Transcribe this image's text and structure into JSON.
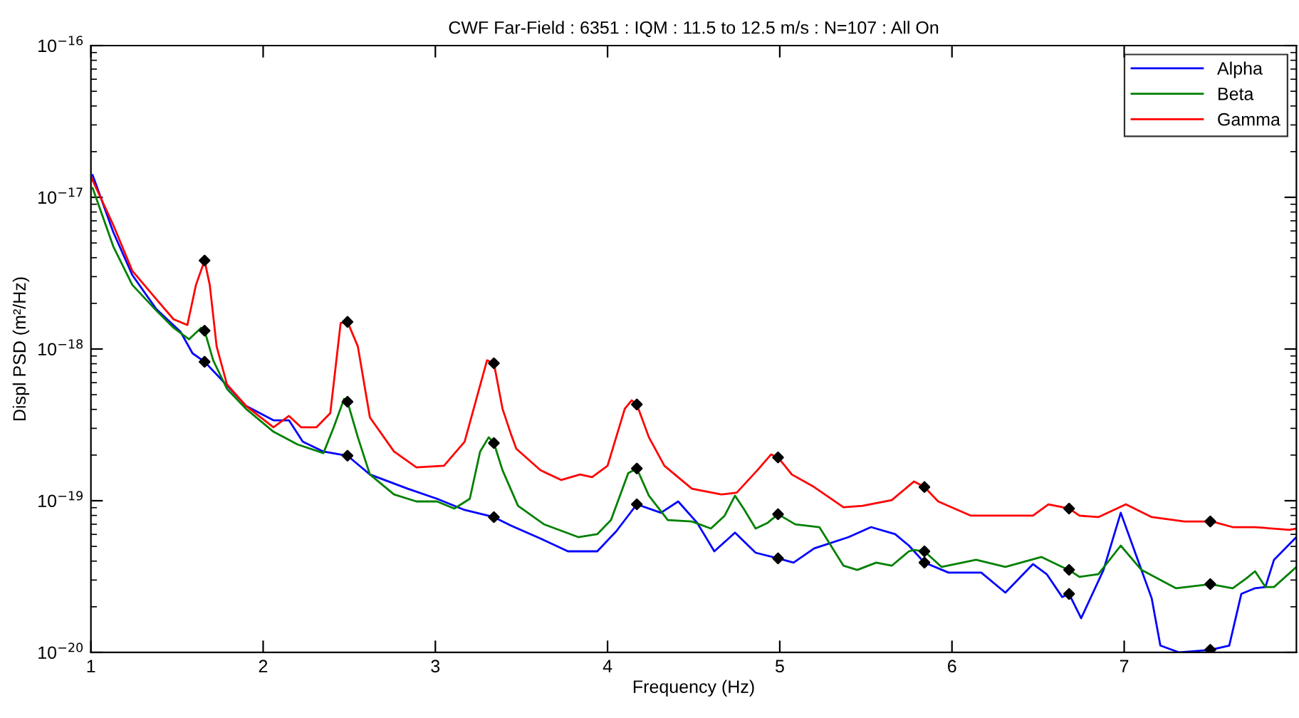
{
  "chart_data": {
    "type": "line",
    "title": "CWF Far-Field : 6351 : IQM : 11.5 to 12.5 m/s : N=107 : All On",
    "xlabel": "Frequency (Hz)",
    "ylabel": "Displ PSD (m²/Hz)",
    "log": "y",
    "grid": false,
    "legend": "top right",
    "xlim": [
      1,
      8
    ],
    "xticks": [
      1,
      2,
      3,
      4,
      5,
      6,
      7
    ],
    "ylim": [
      1e-20,
      1e-16
    ],
    "yticks": [
      {
        "value": 1e-20,
        "label": "10$^{−20}$"
      },
      {
        "value": 1e-19,
        "label": "10$^{−19}$"
      },
      {
        "value": 1e-18,
        "label": "10$^{−18}$"
      },
      {
        "value": 1e-17,
        "label": "10$^{−17}$"
      },
      {
        "value": 1e-16,
        "label": "10$^{−16}$"
      }
    ],
    "series": [
      {
        "name": "Alpha",
        "color": "#0000ff",
        "x": [
          1.01,
          1.13,
          1.24,
          1.38,
          1.52,
          1.59,
          1.66,
          1.77,
          1.9,
          2.06,
          2.15,
          2.23,
          2.35,
          2.49,
          2.62,
          2.84,
          3.01,
          3.17,
          3.34,
          3.44,
          3.61,
          3.77,
          3.94,
          4.05,
          4.17,
          4.31,
          4.41,
          4.52,
          4.62,
          4.74,
          4.86,
          4.99,
          5.08,
          5.2,
          5.4,
          5.53,
          5.67,
          5.75,
          5.84,
          5.98,
          6.17,
          6.31,
          6.47,
          6.55,
          6.64,
          6.68,
          6.75,
          6.88,
          6.98,
          7.07,
          7.16,
          7.21,
          7.32,
          7.5,
          7.61,
          7.68,
          7.76,
          7.82,
          7.87,
          8.0
        ],
        "values": [
          1.4e-17,
          5.89e-18,
          3.08e-18,
          1.83e-18,
          1.3e-18,
          9.37e-19,
          8.24e-19,
          6.08e-19,
          4.22e-19,
          3.39e-19,
          3.39e-19,
          2.45e-19,
          2.11e-19,
          1.98e-19,
          1.49e-19,
          1.2e-19,
          1.03e-19,
          8.69e-20,
          7.8e-20,
          6.85e-20,
          5.64e-20,
          4.64e-20,
          4.64e-20,
          6.28e-20,
          9.47e-20,
          8.33e-20,
          9.89e-20,
          7.16e-20,
          4.64e-20,
          6.16e-20,
          4.54e-20,
          4.17e-20,
          3.91e-20,
          4.85e-20,
          5.76e-20,
          6.7e-20,
          6.02e-20,
          5.06e-20,
          3.91e-20,
          3.36e-20,
          3.36e-20,
          2.48e-20,
          3.82e-20,
          3.28e-20,
          2.32e-20,
          2.43e-20,
          1.68e-20,
          3.5e-20,
          8.33e-20,
          4.35e-20,
          2.27e-20,
          1.11e-20,
          1e-20,
          1.04e-20,
          1.11e-20,
          2.43e-20,
          2.65e-20,
          2.7e-20,
          4.08e-20,
          5.76e-20
        ]
      },
      {
        "name": "Beta",
        "color": "#008000",
        "x": [
          1.01,
          1.13,
          1.24,
          1.38,
          1.48,
          1.57,
          1.64,
          1.66,
          1.71,
          1.79,
          1.9,
          2.06,
          2.2,
          2.35,
          2.41,
          2.47,
          2.49,
          2.55,
          2.62,
          2.76,
          2.89,
          3.01,
          3.11,
          3.2,
          3.26,
          3.31,
          3.34,
          3.39,
          3.48,
          3.63,
          3.83,
          3.94,
          4.02,
          4.12,
          4.17,
          4.24,
          4.35,
          4.49,
          4.6,
          4.68,
          4.74,
          4.79,
          4.86,
          4.93,
          4.99,
          5.09,
          5.23,
          5.37,
          5.45,
          5.56,
          5.65,
          5.75,
          5.78,
          5.84,
          5.94,
          6.14,
          6.31,
          6.52,
          6.64,
          6.68,
          6.74,
          6.85,
          6.98,
          7.1,
          7.3,
          7.5,
          7.63,
          7.71,
          7.76,
          7.82,
          7.87,
          8.0
        ],
        "values": [
          1.15e-17,
          4.74e-18,
          2.65e-18,
          1.79e-18,
          1.38e-18,
          1.16e-18,
          1.38e-18,
          1.32e-18,
          8.42e-19,
          5.46e-19,
          4.04e-19,
          2.85e-19,
          2.35e-19,
          2.06e-19,
          3.05e-19,
          4.69e-19,
          4.49e-19,
          2.62e-19,
          1.49e-19,
          1.1e-19,
          9.89e-20,
          9.89e-20,
          8.88e-20,
          1.03e-19,
          2.11e-19,
          2.62e-19,
          2.4e-19,
          1.59e-19,
          9.26e-20,
          7e-20,
          5.76e-20,
          6.02e-20,
          7.46e-20,
          1.52e-19,
          1.63e-19,
          1.08e-19,
          7.46e-20,
          7.3e-20,
          6.56e-20,
          7.97e-20,
          1.08e-19,
          8.88e-20,
          6.56e-20,
          7.16e-20,
          8.15e-20,
          6.99e-20,
          6.7e-20,
          3.73e-20,
          3.5e-20,
          3.91e-20,
          3.73e-20,
          4.64e-20,
          4.74e-20,
          4.64e-20,
          3.66e-20,
          4.08e-20,
          3.66e-20,
          4.26e-20,
          3.66e-20,
          3.5e-20,
          3.15e-20,
          3.28e-20,
          5.06e-20,
          3.5e-20,
          2.65e-20,
          2.82e-20,
          2.65e-20,
          3.08e-20,
          3.43e-20,
          2.7e-20,
          2.7e-20,
          3.66e-20
        ]
      },
      {
        "name": "Gamma",
        "color": "#ff0000",
        "x": [
          1.0,
          1.13,
          1.24,
          1.38,
          1.48,
          1.56,
          1.61,
          1.66,
          1.69,
          1.73,
          1.79,
          1.9,
          2.06,
          2.15,
          2.22,
          2.31,
          2.39,
          2.45,
          2.49,
          2.55,
          2.62,
          2.76,
          2.89,
          3.05,
          3.17,
          3.3,
          3.34,
          3.39,
          3.44,
          3.47,
          3.61,
          3.73,
          3.84,
          3.91,
          4.0,
          4.1,
          4.14,
          4.17,
          4.24,
          4.33,
          4.49,
          4.66,
          4.75,
          4.87,
          4.95,
          4.99,
          5.07,
          5.2,
          5.37,
          5.48,
          5.65,
          5.78,
          5.84,
          5.92,
          6.11,
          6.47,
          6.56,
          6.68,
          6.74,
          6.85,
          7.01,
          7.16,
          7.35,
          7.51,
          7.63,
          7.76,
          7.96,
          8.0
        ],
        "values": [
          1.37e-17,
          6.56e-18,
          3.28e-18,
          2.13e-18,
          1.57e-18,
          1.44e-18,
          2.65e-18,
          3.83e-18,
          2.65e-18,
          1.04e-18,
          5.84e-19,
          4.22e-19,
          3.05e-19,
          3.62e-19,
          3.05e-19,
          3.05e-19,
          3.78e-19,
          1.48e-18,
          1.51e-18,
          1.04e-18,
          3.54e-19,
          2.11e-19,
          1.66e-19,
          1.7e-19,
          2.45e-19,
          8.42e-19,
          8.06e-19,
          4.04e-19,
          2.73e-19,
          2.2e-19,
          1.59e-19,
          1.37e-19,
          1.49e-19,
          1.43e-19,
          1.7e-19,
          4.04e-19,
          4.59e-19,
          4.31e-19,
          2.62e-19,
          1.7e-19,
          1.2e-19,
          1.1e-19,
          1.13e-19,
          1.59e-19,
          2.02e-19,
          1.93e-19,
          1.49e-19,
          1.23e-19,
          9.06e-20,
          9.26e-20,
          1.01e-19,
          1.34e-19,
          1.23e-19,
          9.89e-20,
          7.97e-20,
          7.97e-20,
          9.47e-20,
          8.88e-20,
          7.97e-20,
          7.8e-20,
          9.47e-20,
          7.8e-20,
          7.3e-20,
          7.3e-20,
          6.7e-20,
          6.7e-20,
          6.42e-20,
          6.56e-20
        ]
      },
      {
        "type": "scatter",
        "color": "#000000",
        "marker": "diamond",
        "x": [
          1.66,
          2.49,
          3.34,
          4.17,
          4.99,
          5.84,
          6.68,
          7.5,
          1.66,
          2.49,
          3.34,
          4.17,
          4.99,
          5.84,
          6.68,
          7.5,
          1.66,
          2.49,
          3.34,
          4.17,
          4.99,
          5.84,
          6.68,
          7.5
        ],
        "values": [
          8.24e-19,
          1.98e-19,
          7.8e-20,
          9.47e-20,
          4.17e-20,
          3.91e-20,
          2.43e-20,
          1.04e-20,
          1.32e-18,
          4.49e-19,
          2.4e-19,
          1.63e-19,
          8.15e-20,
          4.64e-20,
          3.5e-20,
          2.82e-20,
          3.83e-18,
          1.51e-18,
          8.06e-19,
          4.31e-19,
          1.93e-19,
          1.23e-19,
          8.88e-20,
          7.3e-20
        ]
      }
    ]
  }
}
